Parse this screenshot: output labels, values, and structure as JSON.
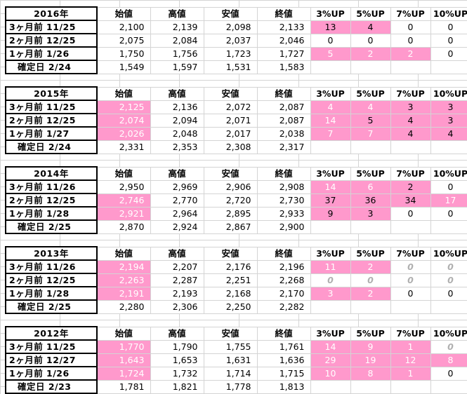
{
  "header": {
    "open": "始値",
    "high": "高値",
    "low": "安値",
    "close": "終値",
    "up3": "3%UP",
    "up5": "5%UP",
    "up7": "7%UP",
    "up10": "10%UP"
  },
  "blocks": [
    {
      "year": "2016年",
      "rows": [
        {
          "label": "3ヶ月前 11/25",
          "open": "2,100",
          "high": "2,139",
          "low": "2,098",
          "close": "2,133",
          "up3": "13",
          "up5": "4",
          "up7": "0",
          "up10": "0"
        },
        {
          "label": "2ヶ月前 12/25",
          "open": "2,075",
          "high": "2,084",
          "low": "2,037",
          "close": "2,046",
          "up3": "0",
          "up5": "0",
          "up7": "0",
          "up10": "0"
        },
        {
          "label": "1ヶ月前 1/26",
          "open": "1,750",
          "high": "1,756",
          "low": "1,723",
          "close": "1,727",
          "up3": "5",
          "up5": "2",
          "up7": "2",
          "up10": "0"
        },
        {
          "label": "確定日 2/24",
          "open": "1,549",
          "high": "1,597",
          "low": "1,531",
          "close": "1,583"
        }
      ]
    },
    {
      "year": "2015年",
      "rows": [
        {
          "label": "3ヶ月前 11/25",
          "open": "2,125",
          "high": "2,136",
          "low": "2,072",
          "close": "2,087",
          "up3": "4",
          "up5": "4",
          "up7": "3",
          "up10": "3"
        },
        {
          "label": "2ヶ月前 12/25",
          "open": "2,074",
          "high": "2,094",
          "low": "2,071",
          "close": "2,087",
          "up3": "14",
          "up5": "5",
          "up7": "4",
          "up10": "3"
        },
        {
          "label": "1ヶ月前 1/27",
          "open": "2,026",
          "high": "2,048",
          "low": "2,017",
          "close": "2,038",
          "up3": "7",
          "up5": "7",
          "up7": "4",
          "up10": "4"
        },
        {
          "label": "確定日 2/24",
          "open": "2,331",
          "high": "2,353",
          "low": "2,308",
          "close": "2,317"
        }
      ]
    },
    {
      "year": "2014年",
      "rows": [
        {
          "label": "3ヶ月前 11/26",
          "open": "2,950",
          "high": "2,969",
          "low": "2,906",
          "close": "2,908",
          "up3": "14",
          "up5": "6",
          "up7": "2",
          "up10": "0"
        },
        {
          "label": "2ヶ月前 12/25",
          "open": "2,746",
          "high": "2,770",
          "low": "2,720",
          "close": "2,730",
          "up3": "37",
          "up5": "36",
          "up7": "34",
          "up10": "17"
        },
        {
          "label": "1ヶ月前 1/28",
          "open": "2,921",
          "high": "2,964",
          "low": "2,895",
          "close": "2,933",
          "up3": "9",
          "up5": "3",
          "up7": "0",
          "up10": "0"
        },
        {
          "label": "確定日 2/25",
          "open": "2,870",
          "high": "2,924",
          "low": "2,867",
          "close": "2,900"
        }
      ]
    },
    {
      "year": "2013年",
      "rows": [
        {
          "label": "3ヶ月前 11/26",
          "open": "2,194",
          "high": "2,207",
          "low": "2,176",
          "close": "2,196",
          "up3": "11",
          "up5": "2",
          "up7": "0",
          "up10": "0"
        },
        {
          "label": "2ヶ月前 12/25",
          "open": "2,263",
          "high": "2,287",
          "low": "2,251",
          "close": "2,268",
          "up3": "0",
          "up5": "0",
          "up7": "0",
          "up10": "0"
        },
        {
          "label": "1ヶ月前 1/28",
          "open": "2,191",
          "high": "2,193",
          "low": "2,168",
          "close": "2,170",
          "up3": "3",
          "up5": "2",
          "up7": "0",
          "up10": "0"
        },
        {
          "label": "確定日 2/25",
          "open": "2,280",
          "high": "2,306",
          "low": "2,250",
          "close": "2,282"
        }
      ]
    },
    {
      "year": "2012年",
      "rows": [
        {
          "label": "3ヶ月前 11/25",
          "open": "1,770",
          "high": "1,790",
          "low": "1,755",
          "close": "1,761",
          "up3": "14",
          "up5": "9",
          "up7": "1",
          "up10": "0"
        },
        {
          "label": "2ヶ月前 12/27",
          "open": "1,643",
          "high": "1,653",
          "low": "1,631",
          "close": "1,636",
          "up3": "29",
          "up5": "19",
          "up7": "12",
          "up10": "8"
        },
        {
          "label": "1ヶ月前 1/26",
          "open": "1,724",
          "high": "1,732",
          "low": "1,714",
          "close": "1,715",
          "up3": "10",
          "up5": "8",
          "up7": "1",
          "up10": "0"
        },
        {
          "label": "確定日 2/23",
          "open": "1,781",
          "high": "1,821",
          "low": "1,778",
          "close": "1,813"
        }
      ]
    }
  ],
  "colors": {
    "highlight": "#ff99cc",
    "grid": "#d4d4d4",
    "zero_italic": "#b0b0b0"
  }
}
